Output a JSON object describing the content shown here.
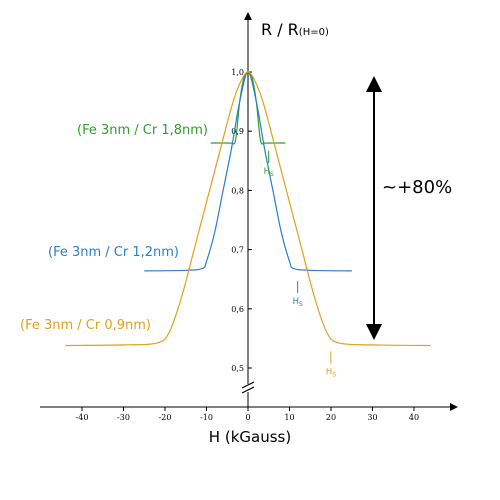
{
  "chart_data": {
    "type": "line",
    "title": "",
    "xlabel": "H (kGauss)",
    "ylabel": "R / R",
    "ylabel_sub": "(H=0)",
    "xlim": [
      -50,
      50
    ],
    "ylim": [
      0.5,
      1.0
    ],
    "x_ticks": [
      -40,
      -30,
      -20,
      -10,
      0,
      10,
      20,
      30,
      40
    ],
    "y_ticks": [
      "1,0",
      "0,9",
      "0,8",
      "0,7",
      "0,6",
      "0,5"
    ],
    "y_tick_values": [
      1.0,
      0.9,
      0.8,
      0.7,
      0.6,
      0.5
    ],
    "grid": false,
    "legend": "none",
    "axis_break": "y",
    "series": [
      {
        "name": "(Fe 3nm / Cr 1,8nm)",
        "color": "#2e9e2e",
        "hs_label": "H",
        "hs_sub": "S",
        "hs": 4,
        "x": [
          -9,
          -5,
          -4,
          -3,
          -2,
          -1,
          0,
          1,
          2,
          3,
          4,
          5,
          9
        ],
        "y": [
          0.88,
          0.88,
          0.88,
          0.885,
          0.95,
          0.99,
          1.0,
          0.99,
          0.95,
          0.885,
          0.88,
          0.88,
          0.88
        ]
      },
      {
        "name": "(Fe 3nm / Cr 1,2nm)",
        "color": "#2b7fc9",
        "hs_label": "H",
        "hs_sub": "S",
        "hs": 11,
        "x": [
          -25,
          -15,
          -11,
          -10,
          -8,
          -6,
          -4,
          -2,
          0,
          2,
          4,
          6,
          8,
          10,
          11,
          15,
          25
        ],
        "y": [
          0.664,
          0.665,
          0.668,
          0.68,
          0.73,
          0.8,
          0.87,
          0.95,
          1.0,
          0.95,
          0.87,
          0.8,
          0.73,
          0.68,
          0.668,
          0.665,
          0.664
        ]
      },
      {
        "name": "(Fe 3nm / Cr 0,9nm)",
        "color": "#e0a020",
        "hs_label": "H",
        "hs_sub": "S",
        "hs": 19,
        "x": [
          -44,
          -30,
          -22,
          -19,
          -16,
          -13,
          -10,
          -7,
          -4,
          -2,
          0,
          2,
          4,
          7,
          10,
          13,
          16,
          19,
          22,
          30,
          44
        ],
        "y": [
          0.538,
          0.539,
          0.542,
          0.56,
          0.62,
          0.7,
          0.78,
          0.86,
          0.94,
          0.98,
          1.0,
          0.98,
          0.94,
          0.86,
          0.78,
          0.7,
          0.62,
          0.56,
          0.542,
          0.539,
          0.538
        ]
      }
    ],
    "annotations": {
      "delta_text": "~+80%"
    }
  }
}
